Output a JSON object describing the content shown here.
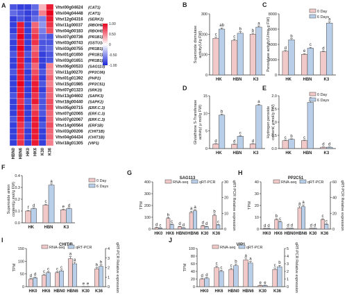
{
  "colors": {
    "day0": "#f2c9c9",
    "day6": "#b9cfe9",
    "rna": "#f2c9c9",
    "qrt": "#b9cfe9",
    "bar_stroke": "#444444",
    "heat_high": "#e8001c",
    "heat_mid": "#ffffff",
    "heat_low": "#1f2ad8"
  },
  "chart_data": [
    {
      "panel": "A",
      "type": "heatmap",
      "columns": [
        "HBN0",
        "HBN6",
        "HK0",
        "HK6",
        "K30",
        "K36"
      ],
      "rows": [
        {
          "id": "Vitvi00g04624",
          "name": "(CAT1)",
          "values": [
            -0.8,
            -0.9,
            -0.9,
            -0.7,
            0.3,
            0.9
          ]
        },
        {
          "id": "Vitvi04g04448",
          "name": "(CAT1)",
          "values": [
            -0.7,
            -0.8,
            -0.9,
            -0.8,
            0.5,
            1.0
          ]
        },
        {
          "id": "Vitvi12g04316",
          "name": "(SERK2)",
          "values": [
            -0.9,
            -0.8,
            -0.9,
            -0.7,
            -0.6,
            0.9
          ]
        },
        {
          "id": "Vitvi11g00037",
          "name": "(RBOHE)",
          "values": [
            -0.9,
            0.9,
            -0.9,
            0.6,
            -0.5,
            0.8
          ]
        },
        {
          "id": "Vitvi04g00183",
          "name": "(RBOHB)",
          "values": [
            -0.9,
            0.9,
            -0.9,
            0.7,
            -0.6,
            0.7
          ]
        },
        {
          "id": "Vitvi07g00736",
          "name": "(PR1B1)",
          "values": [
            -0.8,
            1.0,
            -0.9,
            0.8,
            -0.7,
            -0.8
          ]
        },
        {
          "id": "Vitvi03g00743",
          "name": "(GSTU14)",
          "values": [
            -0.9,
            0.9,
            -0.9,
            0.8,
            -0.8,
            -0.8
          ]
        },
        {
          "id": "Vitvi03g00755",
          "name": "(PR1B1)",
          "values": [
            -0.9,
            1.0,
            -0.9,
            0.6,
            -0.8,
            -0.7
          ]
        },
        {
          "id": "Vitvi01g01650",
          "name": "(PR1B1)",
          "values": [
            -0.8,
            0.9,
            -0.8,
            0.7,
            -0.9,
            -0.8
          ]
        },
        {
          "id": "Vitvi03g01651",
          "name": "(PR1B1)",
          "values": [
            -0.9,
            0.9,
            -0.9,
            0.8,
            -0.9,
            -0.8
          ]
        },
        {
          "id": "Vitvi06g00533",
          "name": "(SAG113)",
          "values": [
            -0.9,
            0.9,
            -0.8,
            0.6,
            -0.9,
            0.5
          ]
        },
        {
          "id": "Vitvi11g00270",
          "name": "(PP2C06)",
          "values": [
            -0.8,
            0.9,
            -0.9,
            0.7,
            -0.8,
            0.5
          ]
        },
        {
          "id": "Vitvi01g01392",
          "name": "(PHP2)",
          "values": [
            -0.9,
            0.9,
            -0.9,
            0.8,
            -0.9,
            0.6
          ]
        },
        {
          "id": "Vitvi15g01985",
          "name": "(PP2C51)",
          "values": [
            -0.9,
            1.0,
            -0.9,
            0.9,
            -0.8,
            0.5
          ]
        },
        {
          "id": "Vitvi07g01323",
          "name": "(SRK2I)",
          "values": [
            -0.9,
            0.9,
            -0.9,
            0.9,
            -0.9,
            0.6
          ]
        },
        {
          "id": "Vitvi13g04602",
          "name": "(SAPK3)",
          "values": [
            -0.8,
            0.9,
            -0.9,
            0.8,
            -0.8,
            0.6
          ]
        },
        {
          "id": "Vitvi18g00440",
          "name": "(SAPK2)",
          "values": [
            -0.9,
            0.8,
            -0.8,
            0.9,
            -0.8,
            0.7
          ]
        },
        {
          "id": "Vitvi05g00715",
          "name": "(ERF.C.3)",
          "values": [
            -0.9,
            0.9,
            -0.9,
            0.7,
            -0.8,
            0.7
          ]
        },
        {
          "id": "Vitvi07g02065",
          "name": "(ERF.C.3)",
          "values": [
            -0.9,
            0.9,
            -0.9,
            0.8,
            -0.8,
            0.6
          ]
        },
        {
          "id": "Vitvi07g02067",
          "name": "(ERF.C.3)",
          "values": [
            -0.8,
            0.9,
            -0.9,
            0.9,
            -0.9,
            0.6
          ]
        },
        {
          "id": "Vitvi14g00564",
          "name": "(ERF1B)",
          "values": [
            -0.9,
            0.8,
            -0.8,
            0.9,
            -0.8,
            0.7
          ]
        },
        {
          "id": "Vitvi03g00206",
          "name": "(CHIT1B)",
          "values": [
            -0.9,
            0.8,
            -0.9,
            0.9,
            -0.9,
            0.6
          ]
        },
        {
          "id": "Vitvi04g04434",
          "name": "(CHIT1B)",
          "values": [
            -0.9,
            0.8,
            -0.9,
            0.9,
            -0.9,
            0.6
          ]
        },
        {
          "id": "Vitvi18g01305",
          "name": "(VIP1)",
          "values": [
            -0.9,
            0.8,
            -0.9,
            0.9,
            -0.9,
            0.5
          ]
        }
      ],
      "colorbar_ticks": [
        "1.00",
        "0.50",
        "0",
        "-0.50",
        "-1.00"
      ],
      "range": [
        -1,
        1
      ]
    },
    {
      "panel": "B",
      "type": "bar",
      "ylabel": "Superoxide dismutase\nactivity(U/g FW)",
      "ylim": [
        0,
        300
      ],
      "yticks": [
        "0",
        "100",
        "200",
        "300"
      ],
      "categories": [
        "HK",
        "HBN",
        "K3"
      ],
      "series": [
        {
          "name": "0 Day",
          "values": [
            180,
            170,
            200
          ],
          "errors": [
            5,
            6,
            5
          ],
          "letters": [
            "c",
            "c",
            "b"
          ]
        },
        {
          "name": "6 Days",
          "values": [
            225,
            205,
            235
          ],
          "errors": [
            6,
            8,
            6
          ],
          "letters": [
            "ab",
            "b",
            "a"
          ]
        }
      ]
    },
    {
      "panel": "C",
      "type": "bar",
      "ylabel": "Peroxidase activity(U/min·g FW)",
      "ylim": [
        0,
        8000
      ],
      "yticks": [
        "0",
        "2000",
        "4000",
        "6000",
        "8000"
      ],
      "legend": [
        "0 Day",
        "6 Days"
      ],
      "categories": [
        "HK",
        "HBN",
        "K3"
      ],
      "series": [
        {
          "name": "0 Day",
          "values": [
            3100,
            2700,
            3050
          ],
          "errors": [
            100,
            100,
            100
          ],
          "letters": [
            "d",
            "e",
            "d"
          ]
        },
        {
          "name": "6 Days",
          "values": [
            4600,
            3500,
            6800
          ],
          "errors": [
            150,
            120,
            150
          ],
          "letters": [
            "b",
            "c",
            "a"
          ]
        }
      ]
    },
    {
      "panel": "D",
      "type": "bar",
      "ylabel": "Glutathione S-Transferase\nactivity( μ mol/g FW)",
      "ylim": [
        0,
        15
      ],
      "yticks": [
        "0",
        "5",
        "10",
        "15"
      ],
      "categories": [
        "HK",
        "HBN",
        "K3"
      ],
      "series": [
        {
          "name": "0 Day",
          "values": [
            1.3,
            1.2,
            1.3
          ],
          "errors": [
            0.1,
            0.1,
            0.1
          ],
          "letters": [
            "d",
            "d",
            "d"
          ]
        },
        {
          "name": "6 Days",
          "values": [
            9.5,
            3.5,
            12.3
          ],
          "errors": [
            0.3,
            0.2,
            0.3
          ],
          "letters": [
            "b",
            "c",
            "a"
          ]
        }
      ]
    },
    {
      "panel": "E",
      "type": "bar",
      "ylabel": "Hydrogen peroxide\ncontent( μ mol/g FW)",
      "ylim": [
        0,
        2.0
      ],
      "yticks": [
        "0.0",
        "0.5",
        "1.0",
        "1.5",
        "2.0"
      ],
      "legend": [
        "0 Day",
        "6 Days"
      ],
      "categories": [
        "HK",
        "HBN",
        "K3"
      ],
      "series": [
        {
          "name": "0 Day",
          "values": [
            0.3,
            0.3,
            0.05
          ],
          "errors": [
            0.02,
            0.02,
            0.01
          ],
          "letters": [
            "c",
            "c",
            "d"
          ]
        },
        {
          "name": "6 Days",
          "values": [
            0.35,
            1.75,
            0.05
          ],
          "errors": [
            0.02,
            0.05,
            0.01
          ],
          "letters": [
            "b",
            "a",
            "d"
          ]
        }
      ]
    },
    {
      "panel": "F",
      "type": "bar",
      "ylabel": "Superoxide anion\ncontent(μ mol/g FW)",
      "ylim": [
        0,
        0.4
      ],
      "yticks": [
        "0.0",
        "0.1",
        "0.2",
        "0.3",
        "0.4"
      ],
      "legend": [
        "0 Day",
        "6 Days"
      ],
      "categories": [
        "HK",
        "HBN",
        "K3"
      ],
      "series": [
        {
          "name": "0 Day",
          "values": [
            0.1,
            0.15,
            0.11
          ],
          "errors": [
            0.005,
            0.008,
            0.005
          ],
          "letters": [
            "f",
            "c",
            "e"
          ]
        },
        {
          "name": "6 Days",
          "values": [
            0.12,
            0.32,
            0.12
          ],
          "errors": [
            0.005,
            0.01,
            0.005
          ],
          "letters": [
            "d",
            "a",
            "d"
          ]
        }
      ]
    },
    {
      "panel": "G",
      "type": "bar",
      "title": "SAG113",
      "ylabel": "TPM",
      "y2label": "qRT-PCR Relative expression",
      "ylim": [
        0,
        400
      ],
      "yticks": [
        "0",
        "100",
        "200",
        "300",
        "400"
      ],
      "y2ticks": [
        "0",
        "10",
        "20",
        "30"
      ],
      "legend": [
        "RNA-seq",
        "qRT-PCR"
      ],
      "categories": [
        "HK0",
        "HK6",
        "HBN0",
        "HBN6",
        "K30",
        "K36"
      ],
      "series": [
        {
          "name": "RNA-seq",
          "values": [
            12,
            90,
            20,
            140,
            28,
            115
          ],
          "errors": [
            3,
            8,
            3,
            12,
            3,
            12
          ],
          "letters": [
            "d",
            "b",
            "d",
            "a",
            "d",
            "b"
          ]
        },
        {
          "name": "qRT-PCR",
          "values": [
            8,
            38,
            10,
            155,
            20,
            35
          ],
          "errors": [
            2,
            4,
            2,
            10,
            3,
            4
          ],
          "letters": [
            "c",
            "c",
            "d",
            "a",
            "d",
            "c"
          ]
        }
      ]
    },
    {
      "panel": "H",
      "type": "bar",
      "title": "PP2C51",
      "ylabel": "TPM",
      "y2label": "qRT-PCR Relative expression",
      "ylim": [
        0,
        40
      ],
      "yticks": [
        "0",
        "10",
        "20",
        "30",
        "40"
      ],
      "y2ticks": [
        "0",
        "20",
        "40",
        "60"
      ],
      "legend": [
        "RNA-seq",
        "qRT-PCR"
      ],
      "categories": [
        "HK0",
        "HK6",
        "HBN0",
        "HBN6",
        "K30",
        "K36"
      ],
      "series": [
        {
          "name": "RNA-seq",
          "values": [
            0.5,
            8,
            0.6,
            18,
            0.6,
            8
          ],
          "errors": [
            0.2,
            0.8,
            0.2,
            1.5,
            0.2,
            0.8
          ],
          "letters": [
            "d",
            "b",
            "d",
            "a",
            "d",
            "c"
          ]
        },
        {
          "name": "qRT-PCR",
          "values": [
            0.5,
            6,
            0.6,
            19,
            0.6,
            4
          ],
          "errors": [
            0.2,
            0.6,
            0.2,
            1.5,
            0.2,
            0.5
          ],
          "letters": [
            "d",
            "c",
            "d",
            "a",
            "d",
            "c"
          ]
        }
      ]
    },
    {
      "panel": "I",
      "type": "bar",
      "title": "CHITIB",
      "ylabel": "TPM",
      "y2label": "qRT-PCR Relative expression",
      "ylim": [
        0,
        150
      ],
      "yticks": [
        "0",
        "50",
        "100",
        "150"
      ],
      "y2ticks": [
        "0",
        "1",
        "2",
        "3",
        "4"
      ],
      "legend": [
        "RNA-seq",
        "qRT-PCR"
      ],
      "categories": [
        "HK0",
        "HK6",
        "HBN0",
        "HBN6",
        "K30",
        "K36"
      ],
      "series": [
        {
          "name": "RNA-seq",
          "values": [
            30,
            45,
            55,
            110,
            0.5,
            70
          ],
          "errors": [
            3,
            4,
            4,
            8,
            0.2,
            5
          ],
          "letters": [
            "d",
            "c",
            "c",
            "a",
            "e",
            "b"
          ]
        },
        {
          "name": "qRT-PCR",
          "values": [
            35,
            55,
            62,
            90,
            0.5,
            80
          ],
          "errors": [
            3,
            4,
            4,
            6,
            0.2,
            6
          ],
          "letters": [
            "d",
            "c",
            "c",
            "a",
            "e",
            "b"
          ]
        }
      ]
    },
    {
      "panel": "J",
      "type": "bar",
      "title": "VIP1",
      "ylabel": "TPM",
      "y2label": "qRT-PCR Relative expression",
      "ylim": [
        0,
        100
      ],
      "yticks": [
        "0",
        "20",
        "40",
        "60",
        "80",
        "100"
      ],
      "y2ticks": [
        "0",
        "1",
        "2",
        "3",
        "4",
        "5"
      ],
      "legend": [
        "RNA-seq",
        "qRT-PCR"
      ],
      "categories": [
        "HK0",
        "HK6",
        "HBN0",
        "HBN6",
        "K30",
        "K36"
      ],
      "series": [
        {
          "name": "RNA-seq",
          "values": [
            20,
            50,
            45,
            70,
            3,
            45
          ],
          "errors": [
            2,
            4,
            3,
            5,
            1,
            4
          ],
          "letters": [
            "d",
            "c",
            "c",
            "a",
            "e",
            "c"
          ]
        },
        {
          "name": "qRT-PCR",
          "values": [
            22,
            40,
            55,
            62,
            3,
            52
          ],
          "errors": [
            2,
            3,
            4,
            4,
            1,
            4
          ],
          "letters": [
            "d",
            "c",
            "b",
            "a",
            "e",
            "b"
          ]
        }
      ]
    }
  ]
}
